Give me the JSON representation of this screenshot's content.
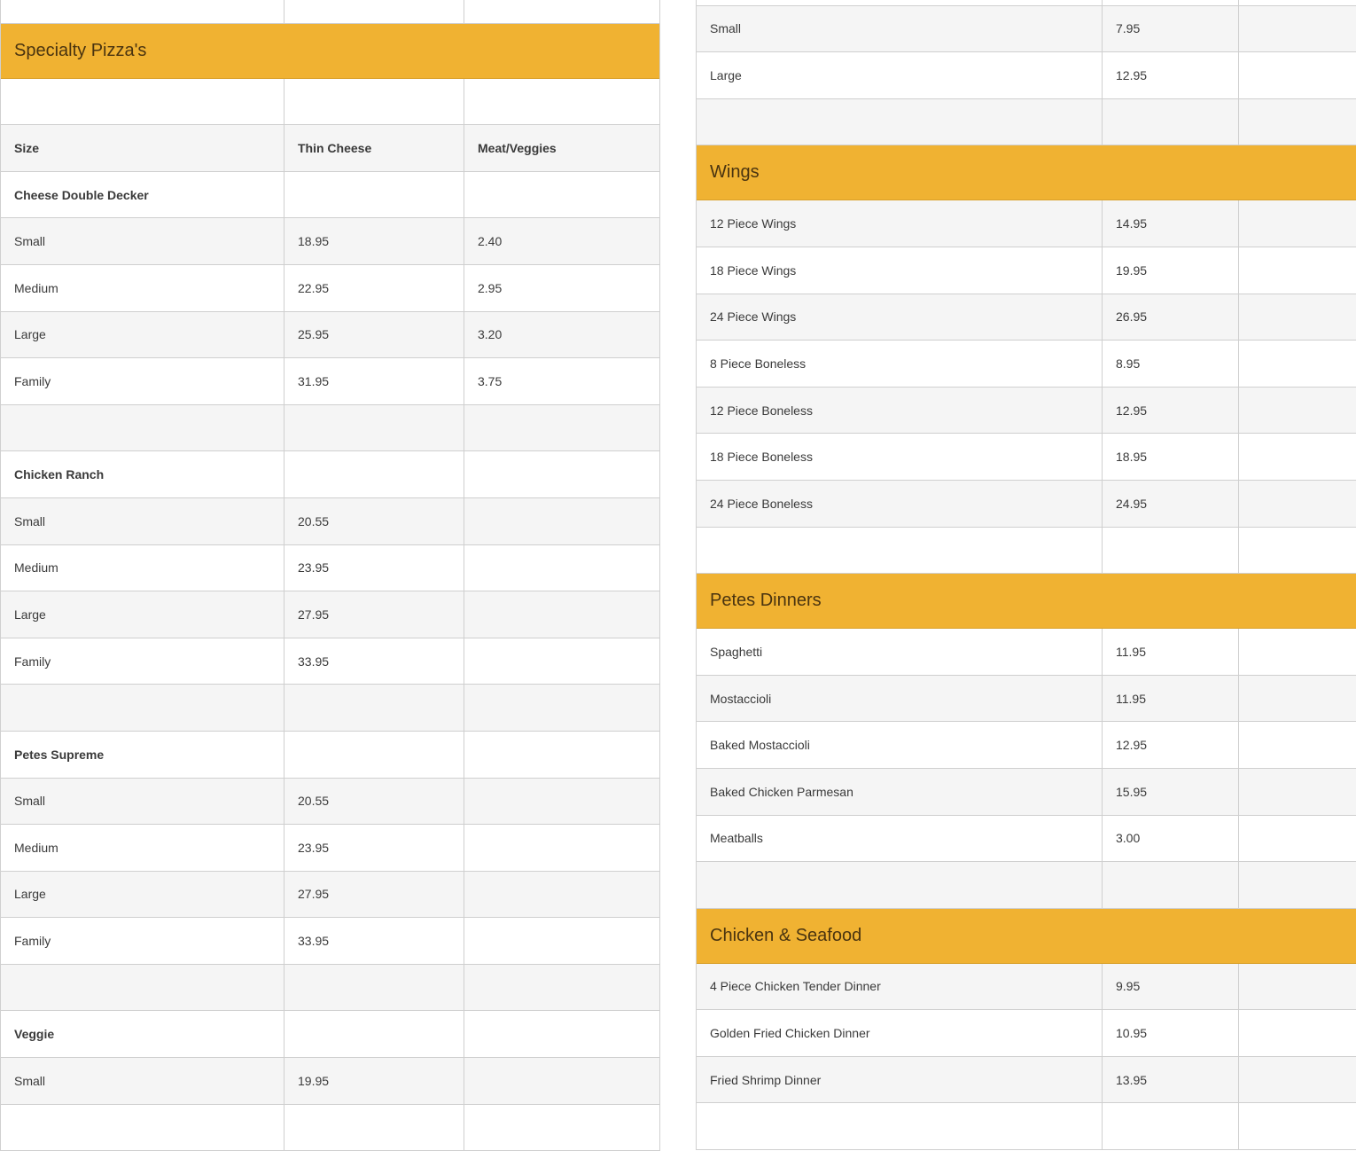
{
  "accent_color": "#f0b232",
  "left_table": {
    "rows": [
      {
        "type": "row",
        "cells": [
          "",
          "",
          ""
        ]
      },
      {
        "type": "section",
        "title": "Specialty Pizza's"
      },
      {
        "type": "row",
        "cells": [
          "",
          "",
          ""
        ]
      },
      {
        "type": "row",
        "bold": true,
        "cells": [
          "Size",
          "Thin Cheese",
          "Meat/Veggies"
        ]
      },
      {
        "type": "row",
        "bold": true,
        "cells": [
          "Cheese Double Decker",
          "",
          ""
        ]
      },
      {
        "type": "row",
        "cells": [
          "Small",
          "18.95",
          "2.40"
        ]
      },
      {
        "type": "row",
        "cells": [
          "Medium",
          "22.95",
          "2.95"
        ]
      },
      {
        "type": "row",
        "cells": [
          "Large",
          "25.95",
          "3.20"
        ]
      },
      {
        "type": "row",
        "cells": [
          "Family",
          "31.95",
          "3.75"
        ]
      },
      {
        "type": "row",
        "cells": [
          "",
          "",
          ""
        ]
      },
      {
        "type": "row",
        "bold": true,
        "cells": [
          "Chicken Ranch",
          "",
          ""
        ]
      },
      {
        "type": "row",
        "cells": [
          "Small",
          "20.55",
          ""
        ]
      },
      {
        "type": "row",
        "cells": [
          "Medium",
          "23.95",
          ""
        ]
      },
      {
        "type": "row",
        "cells": [
          "Large",
          "27.95",
          ""
        ]
      },
      {
        "type": "row",
        "cells": [
          "Family",
          "33.95",
          ""
        ]
      },
      {
        "type": "row",
        "cells": [
          "",
          "",
          ""
        ]
      },
      {
        "type": "row",
        "bold": true,
        "cells": [
          "Petes Supreme",
          "",
          ""
        ]
      },
      {
        "type": "row",
        "cells": [
          "Small",
          "20.55",
          ""
        ]
      },
      {
        "type": "row",
        "cells": [
          "Medium",
          "23.95",
          ""
        ]
      },
      {
        "type": "row",
        "cells": [
          "Large",
          "27.95",
          ""
        ]
      },
      {
        "type": "row",
        "cells": [
          "Family",
          "33.95",
          ""
        ]
      },
      {
        "type": "row",
        "cells": [
          "",
          "",
          ""
        ]
      },
      {
        "type": "row",
        "bold": true,
        "cells": [
          "Veggie",
          "",
          ""
        ]
      },
      {
        "type": "row",
        "cells": [
          "Small",
          "19.95",
          ""
        ]
      },
      {
        "type": "row",
        "cells": [
          "",
          "",
          ""
        ]
      }
    ]
  },
  "right_table": {
    "rows": [
      {
        "type": "row",
        "cells": [
          "",
          "",
          ""
        ]
      },
      {
        "type": "row",
        "cells": [
          "Small",
          "7.95",
          ""
        ]
      },
      {
        "type": "row",
        "cells": [
          "Large",
          "12.95",
          ""
        ]
      },
      {
        "type": "row",
        "cells": [
          "",
          "",
          ""
        ]
      },
      {
        "type": "section",
        "title": "Wings"
      },
      {
        "type": "row",
        "cells": [
          "12 Piece Wings",
          "14.95",
          ""
        ]
      },
      {
        "type": "row",
        "cells": [
          "18 Piece Wings",
          "19.95",
          ""
        ]
      },
      {
        "type": "row",
        "cells": [
          "24 Piece Wings",
          "26.95",
          ""
        ]
      },
      {
        "type": "row",
        "cells": [
          "8 Piece Boneless",
          "8.95",
          ""
        ]
      },
      {
        "type": "row",
        "cells": [
          "12 Piece Boneless",
          "12.95",
          ""
        ]
      },
      {
        "type": "row",
        "cells": [
          "18 Piece Boneless",
          "18.95",
          ""
        ]
      },
      {
        "type": "row",
        "cells": [
          "24 Piece Boneless",
          "24.95",
          ""
        ]
      },
      {
        "type": "row",
        "cells": [
          "",
          "",
          ""
        ]
      },
      {
        "type": "section",
        "title": "Petes Dinners"
      },
      {
        "type": "row",
        "cells": [
          "Spaghetti",
          "11.95",
          ""
        ]
      },
      {
        "type": "row",
        "cells": [
          "Mostaccioli",
          "11.95",
          ""
        ]
      },
      {
        "type": "row",
        "cells": [
          "Baked Mostaccioli",
          "12.95",
          ""
        ]
      },
      {
        "type": "row",
        "cells": [
          "Baked Chicken Parmesan",
          "15.95",
          ""
        ]
      },
      {
        "type": "row",
        "cells": [
          "Meatballs",
          "3.00",
          ""
        ]
      },
      {
        "type": "row",
        "cells": [
          "",
          "",
          ""
        ]
      },
      {
        "type": "section",
        "title": "Chicken & Seafood"
      },
      {
        "type": "row",
        "cells": [
          "4 Piece Chicken Tender Dinner",
          "9.95",
          ""
        ]
      },
      {
        "type": "row",
        "cells": [
          "Golden Fried Chicken Dinner",
          "10.95",
          ""
        ]
      },
      {
        "type": "row",
        "cells": [
          "Fried Shrimp Dinner",
          "13.95",
          ""
        ]
      },
      {
        "type": "row",
        "cells": [
          "",
          "",
          ""
        ]
      }
    ]
  }
}
